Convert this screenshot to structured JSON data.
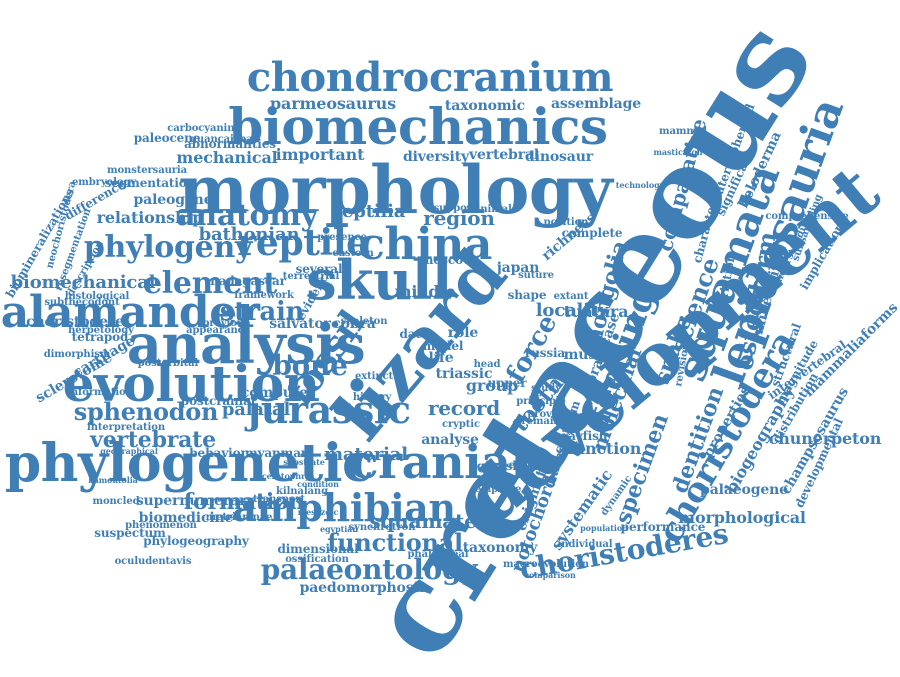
{
  "word_color": "#3f7fb6",
  "words": [
    "cretaceous",
    "development",
    "lizard",
    "morphology",
    "biomechanics",
    "chondrocranium",
    "skull",
    "china",
    "analysis",
    "evolution",
    "phylogenetic",
    "salamander",
    "amphibian",
    "lepidosauria",
    "squamata",
    "fossil",
    "jurassic",
    "cranial",
    "choristoderes",
    "choristodera",
    "reptile",
    "anatomy",
    "phylogeny",
    "element",
    "strain",
    "bone",
    "sphenodon",
    "vertebrate",
    "feeding",
    "force",
    "snake",
    "mongolia",
    "science",
    "osteoderm",
    "comparative",
    "molecular",
    "specimen",
    "dentition",
    "morphological",
    "palaeontology",
    "functional",
    "formation",
    "squamate",
    "biomechanical",
    "relationship",
    "region",
    "reptilia",
    "mechanical",
    "important",
    "diversity",
    "vertebral",
    "dinosaur",
    "parmeosaurus",
    "taxonomic",
    "assemblage",
    "record",
    "palatal",
    "tooth",
    "material",
    "analyse",
    "locality",
    "function",
    "biogeography",
    "heloderma",
    "mineralized",
    "variation",
    "properties",
    "chunerpeton",
    "palaeogene",
    "paleogene",
    "computer",
    "postcranial",
    "cartilage",
    "tetrapod",
    "sclerotome",
    "notochord",
    "systematic",
    "taxonomy",
    "macroevolution",
    "paedomorphosis",
    "biomedicine",
    "phylogeography",
    "supernumerary",
    "behavior",
    "myanmar",
    "model",
    "middle",
    "group",
    "triassic",
    "salvator",
    "cobra",
    "caenosaur",
    "crayfish",
    "qianshan",
    "bathonian",
    "paleocene",
    "segmentation",
    "abnormalities",
    "monstersauria",
    "carbocyanine",
    "guancaishan",
    "dimensional",
    "ossification",
    "phalangeal",
    "skeleton",
    "madagascar",
    "framework",
    "neochoristodera",
    "resegmentation",
    "histological",
    "subthecodont",
    "choristodere",
    "herpetology",
    "dimorphism",
    "information",
    "interpretation",
    "oculudentavis",
    "phenomenon",
    "geographical",
    "moncled",
    "kamoktolia",
    "suspectum",
    "biomineralizations",
    "difference",
    "embryology",
    "description",
    "appearance",
    "previous",
    "postorbital",
    "masticaton",
    "mammal",
    "laterosphenoid",
    "technology",
    "comprehensive",
    "understanding",
    "implication",
    "intervertebral",
    "champsosaurus",
    "magnitude",
    "mammaliaforms",
    "developmental",
    "distribution",
    "revision",
    "character",
    "performance",
    "enigmatic",
    "enigmatic",
    "dynamic",
    "tuatara",
    "braincase",
    "baingubs",
    "cranium",
    "japan",
    "extant",
    "suture",
    "muscle",
    "russia",
    "shape",
    "head",
    "richness",
    "evidence",
    "several",
    "terrestrial",
    "presence",
    "eastern",
    "minimal",
    "support",
    "position",
    "complete",
    "significant",
    "structural",
    "subsampling",
    "dynamics",
    "moscow",
    "history",
    "extinct",
    "remain",
    "study",
    "enigmatic",
    "synchrotron",
    "kilnalang",
    "metriamnae",
    "ceratophrys",
    "transport",
    "egyptian",
    "substrate",
    "condition",
    "mesozoic",
    "elapidae",
    "individual",
    "population",
    "comparison",
    "amphibian",
    "cryptic",
    "eocene",
    "provide",
    "principle",
    "upper",
    "life",
    "role",
    "data"
  ]
}
